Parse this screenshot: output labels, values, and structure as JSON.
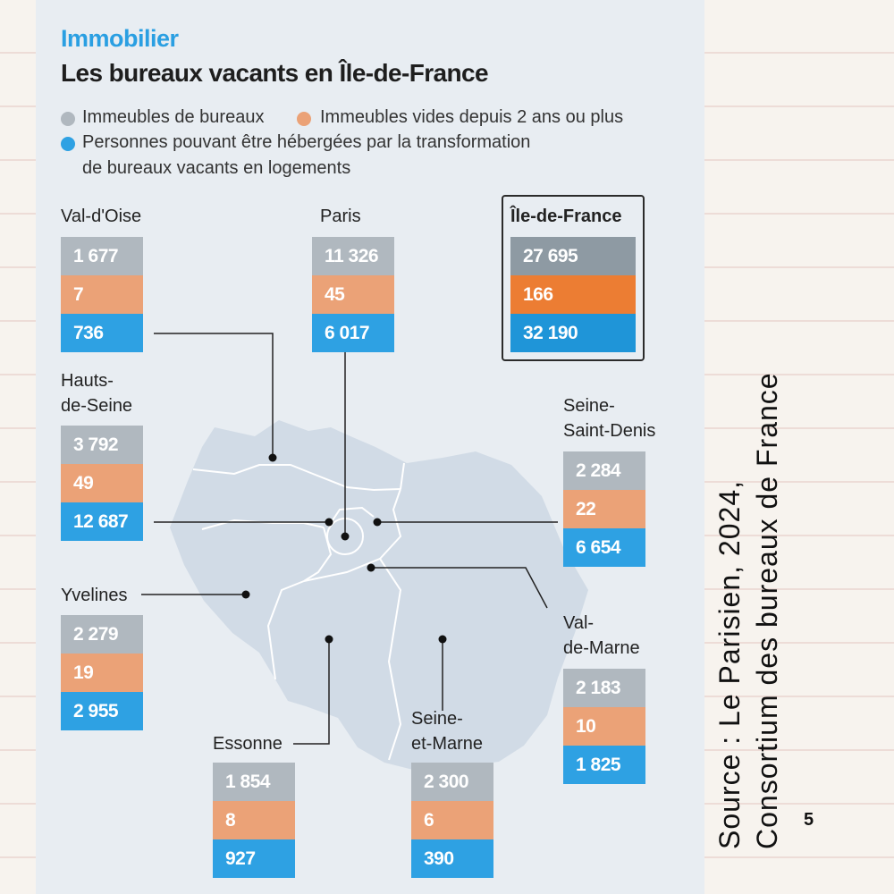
{
  "header": {
    "kicker": "Immobilier",
    "title": "Les bureaux vacants en Île-de-France"
  },
  "legend": {
    "offices": "Immeubles de bureaux",
    "empty": "Immeubles vides depuis 2 ans ou plus",
    "people_line1": "Personnes pouvant être hébergées par la transformation",
    "people_line2": "de bureaux vacants en logements"
  },
  "colors": {
    "gray": "#b0b8bf",
    "orange": "#eba277",
    "blue": "#2ea1e3",
    "accent": "#2a9fe2"
  },
  "regions": {
    "val_doise": {
      "name": "Val-d'Oise",
      "offices": "1 677",
      "empty": "7",
      "people": "736"
    },
    "paris": {
      "name": "Paris",
      "offices": "11 326",
      "empty": "45",
      "people": "6 017"
    },
    "idf": {
      "name": "Île-de-France",
      "offices": "27 695",
      "empty": "166",
      "people": "32 190"
    },
    "hauts_de_seine": {
      "name_line1": "Hauts-",
      "name_line2": "de-Seine",
      "offices": "3 792",
      "empty": "49",
      "people": "12 687"
    },
    "seine_saint_denis": {
      "name_line1": "Seine-",
      "name_line2": "Saint-Denis",
      "offices": "2 284",
      "empty": "22",
      "people": "6 654"
    },
    "yvelines": {
      "name": "Yvelines",
      "offices": "2 279",
      "empty": "19",
      "people": "2 955"
    },
    "val_de_marne": {
      "name_line1": "Val-",
      "name_line2": "de-Marne",
      "offices": "2 183",
      "empty": "10",
      "people": "1 825"
    },
    "essonne": {
      "name": "Essonne",
      "offices": "1 854",
      "empty": "8",
      "people": "927"
    },
    "seine_et_marne": {
      "name_line1": "Seine-",
      "name_line2": "et-Marne",
      "offices": "2 300",
      "empty": "6",
      "people": "390"
    }
  },
  "source": {
    "line1": "Source : Le Parisien, 2024,",
    "line2": "Consortium des bureaux de France"
  },
  "page_number": "5"
}
